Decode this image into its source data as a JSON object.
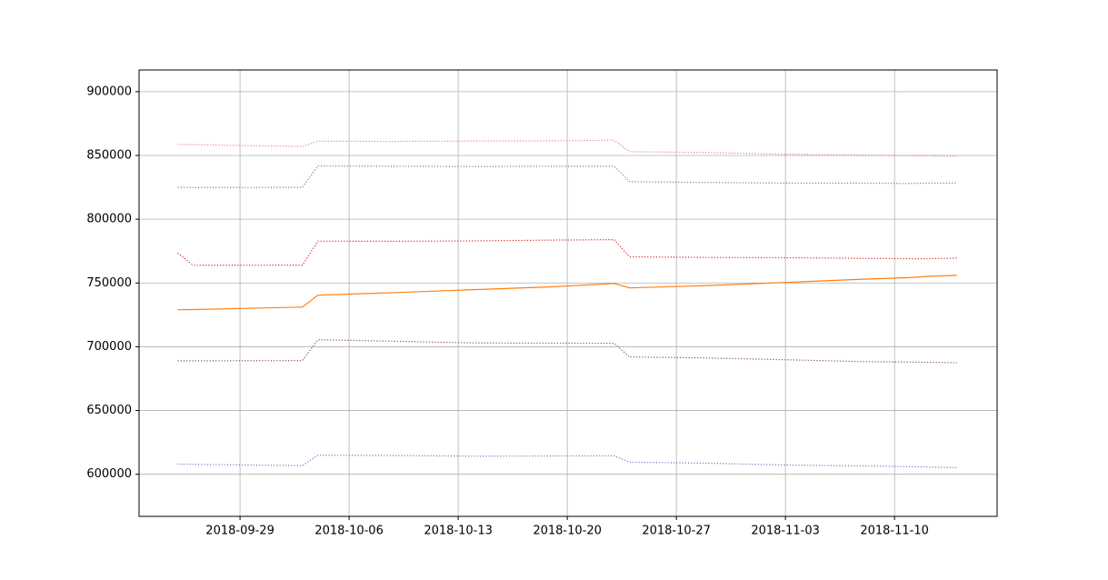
{
  "chart_data": {
    "type": "line",
    "x": [
      "2018-09-25",
      "2018-09-26",
      "2018-10-03",
      "2018-10-04",
      "2018-10-09",
      "2018-10-14",
      "2018-10-19",
      "2018-10-23",
      "2018-10-24",
      "2018-10-29",
      "2018-11-03",
      "2018-11-08",
      "2018-11-11",
      "2018-11-12",
      "2018-11-14"
    ],
    "series": [
      {
        "color": "#e377c2",
        "style": "dotted",
        "values": [
          858700,
          858500,
          857000,
          861200,
          861000,
          861300,
          861500,
          862000,
          853000,
          852300,
          851000,
          850300,
          849800,
          849700,
          849500
        ]
      },
      {
        "color": "#7f7f7f",
        "style": "dotted",
        "values": [
          825000,
          824800,
          825000,
          841800,
          841500,
          841300,
          841500,
          841500,
          829500,
          828800,
          828300,
          828300,
          828000,
          828300,
          828300
        ]
      },
      {
        "color": "#d62728",
        "style": "dotted",
        "values": [
          773500,
          763900,
          764000,
          782800,
          782700,
          783000,
          783600,
          784000,
          770500,
          770000,
          769800,
          769300,
          769000,
          769000,
          769500
        ]
      },
      {
        "color": "#ff7f0e",
        "style": "solid",
        "values": [
          729000,
          729200,
          731100,
          740400,
          742500,
          744800,
          747000,
          749600,
          746100,
          748000,
          750400,
          753000,
          754200,
          755100,
          756000
        ]
      },
      {
        "color": "#8c564b",
        "style": "dotted",
        "values": [
          689000,
          689000,
          689200,
          705500,
          704300,
          703000,
          702800,
          702700,
          692000,
          691200,
          689800,
          688300,
          688000,
          687900,
          687500
        ]
      },
      {
        "color": "#9467bd",
        "style": "dotted",
        "values": [
          608000,
          607800,
          606800,
          615000,
          614700,
          614200,
          614300,
          614500,
          609500,
          608700,
          607300,
          606500,
          606000,
          605800,
          605200
        ]
      }
    ],
    "xlim": [
      "2018-09-22T12:30",
      "2018-11-16T14:00"
    ],
    "xticks": [
      "2018-09-29",
      "2018-10-06",
      "2018-10-13",
      "2018-10-20",
      "2018-10-27",
      "2018-11-03",
      "2018-11-10"
    ],
    "ylim": [
      567000,
      917000
    ],
    "yticks": [
      600000,
      650000,
      700000,
      750000,
      800000,
      850000,
      900000
    ],
    "grid": true
  }
}
